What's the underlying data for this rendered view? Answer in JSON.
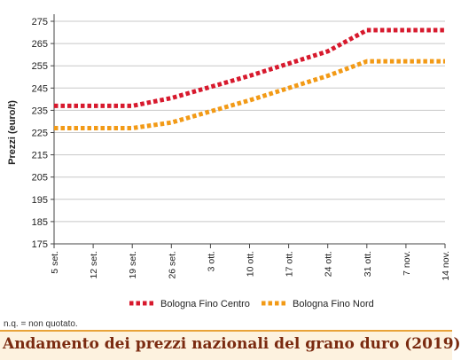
{
  "chart_data": {
    "type": "line",
    "title": "Andamento dei prezzi nazionali del grano duro (2019)",
    "ylabel": "Prezzi (euro/t)",
    "xlabel": "",
    "ylim": [
      175,
      275
    ],
    "yticks": [
      175,
      185,
      195,
      205,
      215,
      225,
      235,
      245,
      255,
      265,
      275
    ],
    "categories": [
      "5 set.",
      "12 set.",
      "19 set.",
      "26 set.",
      "3 ott.",
      "10 ott.",
      "17 ott.",
      "24 ott.",
      "31 ott.",
      "7 nov.",
      "14 nov."
    ],
    "grid": "horizontal",
    "legend_position": "bottom",
    "series": [
      {
        "name": "Bologna Fino Centro",
        "color": "#d7192d",
        "values": [
          237,
          237,
          237,
          240.5,
          245.5,
          250.5,
          256,
          261.5,
          271,
          271,
          271
        ]
      },
      {
        "name": "Bologna Fino Nord",
        "color": "#f29a16",
        "values": [
          227,
          227,
          227,
          229.5,
          234.5,
          239.5,
          245,
          250.5,
          257,
          257,
          257
        ]
      }
    ]
  },
  "footnote": "n.q. = non quotato.",
  "caption": "Andamento dei prezzi nazionali del grano duro (2019)",
  "colors": {
    "grid": "#c8c8c8",
    "axis": "#444444",
    "caption_bg": "#fdf2df",
    "caption_text": "#7a2a10"
  }
}
